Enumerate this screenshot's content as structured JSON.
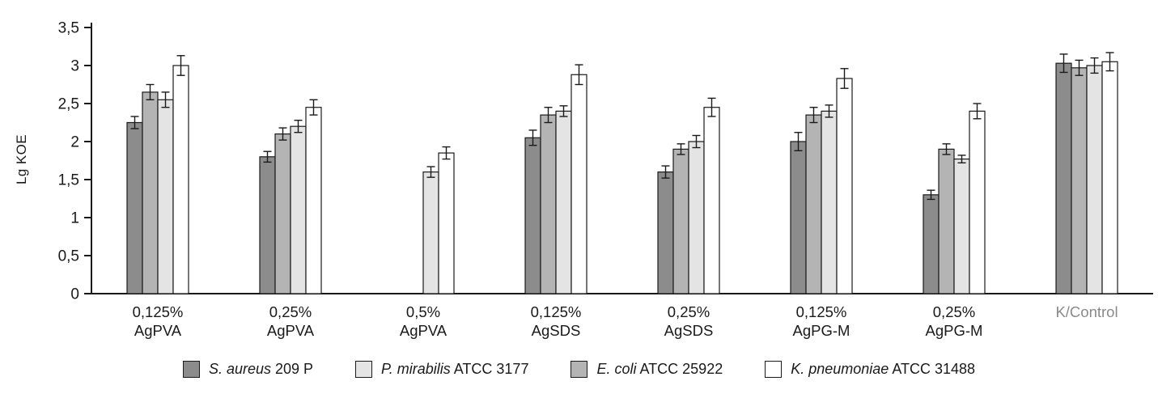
{
  "chart_data": {
    "type": "bar",
    "title": "",
    "xlabel": "",
    "ylabel": "Lg KOE",
    "ylim": [
      0,
      3.5
    ],
    "grid": false,
    "legend_position": "bottom",
    "yticks": [
      0,
      0.5,
      1,
      1.5,
      2,
      2.5,
      3,
      3.5
    ],
    "ytick_labels": [
      "0",
      "0,5",
      "1",
      "1,5",
      "2",
      "2,5",
      "3",
      "3,5"
    ],
    "categories": [
      {
        "line1": "0,125%",
        "line2": "AgPVA",
        "muted": false
      },
      {
        "line1": "0,25%",
        "line2": "AgPVA",
        "muted": false
      },
      {
        "line1": "0,5%",
        "line2": "AgPVA",
        "muted": false
      },
      {
        "line1": "0,125%",
        "line2": "AgSDS",
        "muted": false
      },
      {
        "line1": "0,25%",
        "line2": "AgSDS",
        "muted": false
      },
      {
        "line1": "0,125%",
        "line2": "AgPG-M",
        "muted": false
      },
      {
        "line1": "0,25%",
        "line2": "AgPG-M",
        "muted": false
      },
      {
        "line1": "K/Control",
        "line2": "",
        "muted": true
      }
    ],
    "series": [
      {
        "name": "S. aureus 209 P",
        "color": "#8c8c8c",
        "values": [
          2.25,
          1.8,
          null,
          2.05,
          1.6,
          2.0,
          1.3,
          3.03
        ],
        "errors": [
          0.08,
          0.07,
          null,
          0.1,
          0.08,
          0.12,
          0.06,
          0.12
        ]
      },
      {
        "name": "E. coli ATCC 25922",
        "color": "#b4b4b4",
        "values": [
          2.65,
          2.1,
          null,
          2.35,
          1.9,
          2.35,
          1.9,
          2.97
        ],
        "errors": [
          0.1,
          0.08,
          null,
          0.1,
          0.07,
          0.1,
          0.07,
          0.1
        ]
      },
      {
        "name": "P. mirabilis ATCC 3177",
        "color": "#e4e4e4",
        "values": [
          2.55,
          2.2,
          1.6,
          2.4,
          2.0,
          2.4,
          1.77,
          3.0
        ],
        "errors": [
          0.1,
          0.08,
          0.07,
          0.07,
          0.08,
          0.08,
          0.05,
          0.1
        ]
      },
      {
        "name": "K. pneumoniae ATCC 31488",
        "color": "#ffffff",
        "values": [
          3.0,
          2.45,
          1.85,
          2.88,
          2.45,
          2.83,
          2.4,
          3.05
        ],
        "errors": [
          0.13,
          0.1,
          0.08,
          0.13,
          0.12,
          0.13,
          0.1,
          0.12
        ]
      }
    ],
    "legend": [
      {
        "italic": "S. aureus",
        "regular": " 209 P",
        "color": "#8c8c8c"
      },
      {
        "italic": "P. mirabilis",
        "regular": " ATCC 3177",
        "color": "#e4e4e4"
      },
      {
        "italic": "E. coli",
        "regular": " ATCC 25922",
        "color": "#b4b4b4"
      },
      {
        "italic": "K. pneumoniae",
        "regular": " ATCC 31488",
        "color": "#ffffff"
      }
    ]
  },
  "colors": {
    "axis": "#1a1a1a",
    "text": "#1a1a1a",
    "muted_label": "#8a8a8a",
    "background": "#ffffff"
  }
}
